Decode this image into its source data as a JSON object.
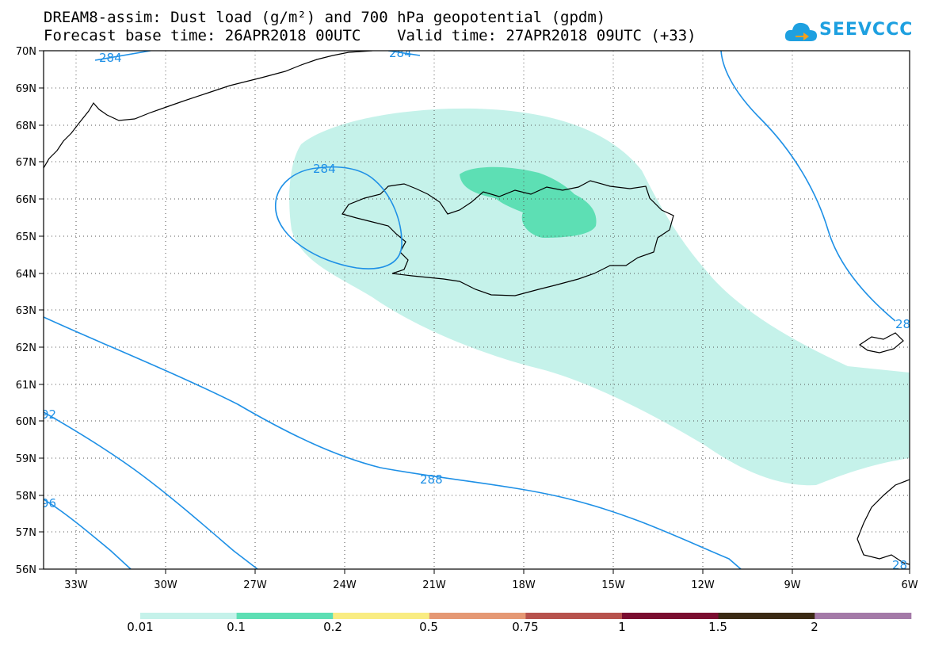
{
  "title": {
    "line1": "DREAM8-assim: Dust load (g/m²) and 700 hPa geopotential (gpdm)",
    "line2": "Forecast base time: 26APR2018 00UTC    Valid time: 27APR2018 09UTC (+33)"
  },
  "logo": {
    "text": "SEEVCCC",
    "color": "#1ea0e0",
    "icon": "cloud-arrow-icon"
  },
  "map": {
    "lon_range": [
      -34.333,
      -6
    ],
    "lat_range": [
      56,
      70
    ],
    "lon_ticks": [
      "33W",
      "30W",
      "27W",
      "24W",
      "21W",
      "18W",
      "15W",
      "12W",
      "9W",
      "6W"
    ],
    "lat_ticks": [
      "70N",
      "69N",
      "68N",
      "67N",
      "66N",
      "65N",
      "64N",
      "63N",
      "62N",
      "61N",
      "60N",
      "59N",
      "58N",
      "57N",
      "56N"
    ],
    "grid": "dotted",
    "contour_color": "#1e90e6",
    "contour_labels": [
      "284",
      "284",
      "284",
      "288",
      "92",
      "96",
      "28",
      "28"
    ]
  },
  "legend": {
    "colors": [
      "#c5f2ea",
      "#5ddfb4",
      "#f9ec82",
      "#e59874",
      "#b7524d",
      "#7a0d30",
      "#3b2a14",
      "#a47aa8"
    ],
    "labels": [
      "0.01",
      "0.1",
      "0.2",
      "0.5",
      "0.75",
      "1",
      "1.5",
      "2"
    ]
  }
}
